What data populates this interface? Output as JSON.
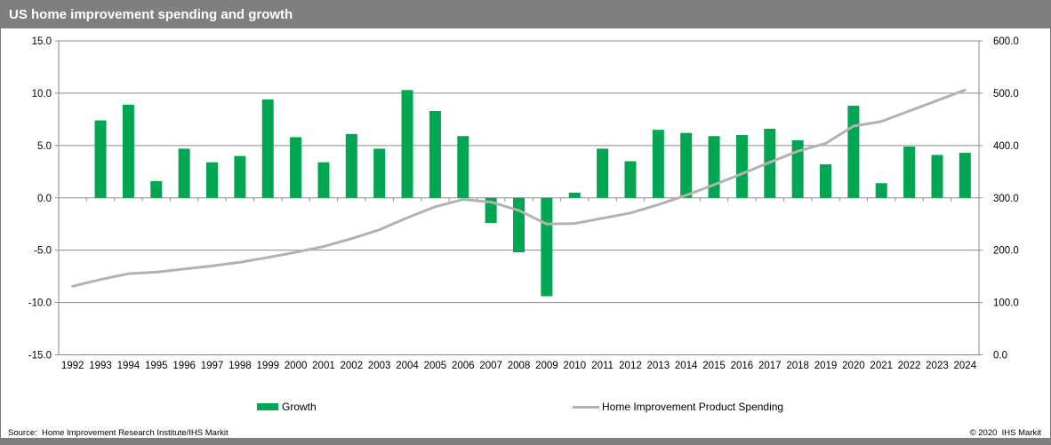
{
  "header": {
    "title": "US home improvement spending and growth"
  },
  "footer": {
    "source": "Source:  Home Improvement Research Institute/IHS Markit",
    "copyright": "© 2020  IHS Markit"
  },
  "legend": {
    "growth_label": "Growth",
    "spending_label": "Home Improvement Product Spending"
  },
  "colors": {
    "title_bar": "#7f7f7f",
    "bottom_strip": "#7f7f7f",
    "bar_green": "#00A651",
    "line_gray": "#b2b2b2",
    "grid_gray": "#8a8a8a",
    "text": "#000000",
    "title_text": "#ffffff"
  },
  "chart_data": {
    "type": "bar",
    "title": "US home improvement spending and growth",
    "categories": [
      "1992",
      "1993",
      "1994",
      "1995",
      "1996",
      "1997",
      "1998",
      "1999",
      "2000",
      "2001",
      "2002",
      "2003",
      "2004",
      "2005",
      "2006",
      "2007",
      "2008",
      "2009",
      "2010",
      "2011",
      "2012",
      "2013",
      "2014",
      "2015",
      "2016",
      "2017",
      "2018",
      "2019",
      "2020",
      "2021",
      "2022",
      "2023",
      "2024"
    ],
    "series": [
      {
        "name": "Growth",
        "type": "bar",
        "axis": "left",
        "color": "#00A651",
        "values": [
          null,
          7.4,
          8.9,
          1.6,
          4.7,
          3.4,
          4.0,
          9.4,
          5.8,
          3.4,
          6.1,
          4.7,
          10.3,
          8.3,
          5.9,
          -2.4,
          -5.2,
          -9.4,
          0.5,
          4.7,
          3.5,
          6.5,
          6.2,
          5.9,
          6.0,
          6.6,
          5.5,
          3.2,
          8.8,
          1.4,
          4.9,
          4.1,
          4.3
        ]
      },
      {
        "name": "Home Improvement Product Spending",
        "type": "line",
        "axis": "right",
        "color": "#b2b2b2",
        "values": [
          131,
          144,
          155,
          158,
          164,
          170,
          177,
          186,
          196,
          207,
          222,
          239,
          262,
          283,
          297,
          292,
          276,
          250,
          251,
          261,
          271,
          287,
          305,
          325,
          346,
          368,
          389,
          404,
          437,
          446,
          466,
          486,
          506
        ]
      }
    ],
    "left_axis": {
      "min": -15,
      "max": 15,
      "tick_values": [
        15,
        10,
        5,
        0,
        -5,
        -10,
        -15
      ],
      "tick_labels": [
        "15.0",
        "10.0",
        "5.0",
        "0.0",
        "-5.0",
        "-10.0",
        "-15.0"
      ]
    },
    "right_axis": {
      "min": 0,
      "max": 600,
      "tick_values": [
        600,
        500,
        400,
        300,
        200,
        100,
        0
      ],
      "tick_labels": [
        "600.0",
        "500.0",
        "400.0",
        "300.0",
        "200.0",
        "100.0",
        "0.0"
      ]
    },
    "grid": true,
    "legend_position": "bottom"
  }
}
